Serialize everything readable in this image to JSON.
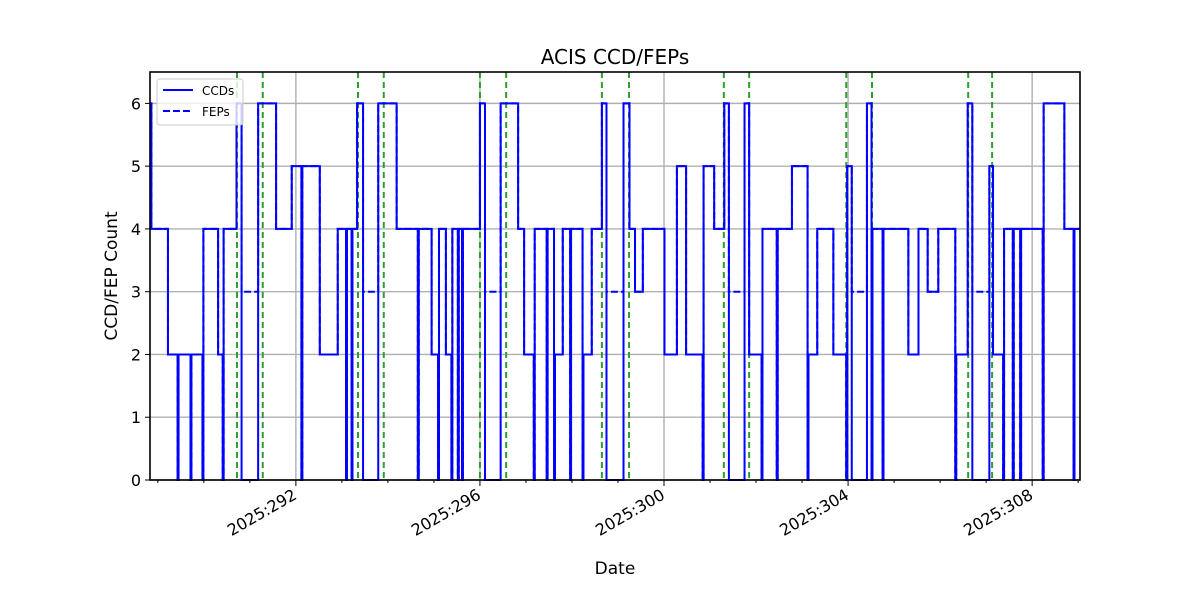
{
  "chart_data": {
    "type": "line",
    "title": "ACIS CCD/FEPs",
    "xlabel": "Date",
    "ylabel": "CCD/FEP Count",
    "xlim": [
      288.83,
      309.04
    ],
    "ylim": [
      0,
      6.5
    ],
    "grid": true,
    "legend_placement": "top-left",
    "x_ticks": [
      {
        "value": 292,
        "label": "2025:292"
      },
      {
        "value": 296,
        "label": "2025:296"
      },
      {
        "value": 300,
        "label": "2025:300"
      },
      {
        "value": 304,
        "label": "2025:304"
      },
      {
        "value": 308,
        "label": "2025:308"
      }
    ],
    "x_minor_ticks": [
      289,
      290,
      291,
      293,
      294,
      295,
      297,
      298,
      299,
      301,
      302,
      303,
      305,
      306,
      307,
      309
    ],
    "y_ticks": [
      0,
      1,
      2,
      3,
      4,
      5,
      6
    ],
    "colors": {
      "ccd": "#0000ff",
      "fep": "#0000ff",
      "event": "#2ca02c",
      "grid": "#b0b0b0"
    },
    "series": [
      {
        "name": "CCDs",
        "style": "solid",
        "steps": [
          [
            288.83,
            6
          ],
          [
            288.86,
            4
          ],
          [
            289.22,
            2
          ],
          [
            289.43,
            0
          ],
          [
            289.45,
            2
          ],
          [
            289.71,
            0
          ],
          [
            289.73,
            2
          ],
          [
            289.97,
            0
          ],
          [
            289.99,
            4
          ],
          [
            290.31,
            2
          ],
          [
            290.41,
            0
          ],
          [
            290.43,
            4
          ],
          [
            290.71,
            6
          ],
          [
            290.82,
            0
          ],
          [
            291.18,
            6
          ],
          [
            291.57,
            4
          ],
          [
            291.91,
            5
          ],
          [
            292.12,
            0
          ],
          [
            292.14,
            5
          ],
          [
            292.52,
            2
          ],
          [
            292.91,
            4
          ],
          [
            293.09,
            0
          ],
          [
            293.11,
            4
          ],
          [
            293.21,
            0
          ],
          [
            293.23,
            4
          ],
          [
            293.33,
            6
          ],
          [
            293.46,
            0
          ],
          [
            293.79,
            6
          ],
          [
            294.19,
            4
          ],
          [
            294.65,
            0
          ],
          [
            294.67,
            4
          ],
          [
            294.95,
            2
          ],
          [
            295.09,
            0
          ],
          [
            295.11,
            4
          ],
          [
            295.26,
            2
          ],
          [
            295.38,
            0
          ],
          [
            295.4,
            4
          ],
          [
            295.52,
            0
          ],
          [
            295.54,
            4
          ],
          [
            295.61,
            0
          ],
          [
            295.63,
            4
          ],
          [
            296.0,
            6
          ],
          [
            296.11,
            0
          ],
          [
            296.45,
            6
          ],
          [
            296.83,
            4
          ],
          [
            296.96,
            2
          ],
          [
            297.17,
            0
          ],
          [
            297.19,
            4
          ],
          [
            297.45,
            0
          ],
          [
            297.47,
            4
          ],
          [
            297.61,
            0
          ],
          [
            297.63,
            2
          ],
          [
            297.8,
            4
          ],
          [
            297.96,
            0
          ],
          [
            297.98,
            4
          ],
          [
            298.23,
            0
          ],
          [
            298.25,
            2
          ],
          [
            298.43,
            4
          ],
          [
            298.65,
            6
          ],
          [
            298.75,
            0
          ],
          [
            299.12,
            6
          ],
          [
            299.25,
            4
          ],
          [
            299.37,
            3
          ],
          [
            299.54,
            4
          ],
          [
            300.01,
            2
          ],
          [
            300.28,
            5
          ],
          [
            300.48,
            2
          ],
          [
            300.84,
            0
          ],
          [
            300.86,
            5
          ],
          [
            301.09,
            4
          ],
          [
            301.31,
            6
          ],
          [
            301.41,
            0
          ],
          [
            301.75,
            6
          ],
          [
            301.85,
            2
          ],
          [
            302.12,
            0
          ],
          [
            302.14,
            4
          ],
          [
            302.45,
            0
          ],
          [
            302.47,
            4
          ],
          [
            302.78,
            5
          ],
          [
            303.12,
            0
          ],
          [
            303.14,
            2
          ],
          [
            303.33,
            4
          ],
          [
            303.68,
            2
          ],
          [
            303.96,
            0
          ],
          [
            303.98,
            5
          ],
          [
            304.08,
            0
          ],
          [
            304.41,
            6
          ],
          [
            304.51,
            0
          ],
          [
            304.53,
            4
          ],
          [
            304.75,
            0
          ],
          [
            304.77,
            4
          ],
          [
            305.31,
            2
          ],
          [
            305.53,
            4
          ],
          [
            305.73,
            3
          ],
          [
            305.96,
            4
          ],
          [
            306.33,
            0
          ],
          [
            306.35,
            2
          ],
          [
            306.6,
            6
          ],
          [
            306.7,
            0
          ],
          [
            307.07,
            5
          ],
          [
            307.15,
            2
          ],
          [
            307.37,
            0
          ],
          [
            307.39,
            4
          ],
          [
            307.58,
            0
          ],
          [
            307.6,
            4
          ],
          [
            307.74,
            0
          ],
          [
            307.76,
            4
          ],
          [
            308.23,
            0
          ],
          [
            308.25,
            6
          ],
          [
            308.7,
            4
          ],
          [
            308.9,
            0
          ],
          [
            308.92,
            4
          ],
          [
            309.04,
            4
          ]
        ]
      },
      {
        "name": "FEPs",
        "style": "dashed",
        "steps": [
          [
            288.83,
            6
          ],
          [
            288.86,
            4
          ],
          [
            289.22,
            2
          ],
          [
            289.43,
            0
          ],
          [
            289.45,
            2
          ],
          [
            289.71,
            0
          ],
          [
            289.73,
            2
          ],
          [
            289.97,
            0
          ],
          [
            289.99,
            4
          ],
          [
            290.31,
            2
          ],
          [
            290.41,
            0
          ],
          [
            290.43,
            4
          ],
          [
            290.71,
            6
          ],
          [
            290.82,
            3
          ],
          [
            291.18,
            6
          ],
          [
            291.57,
            4
          ],
          [
            291.91,
            5
          ],
          [
            292.12,
            0
          ],
          [
            292.14,
            5
          ],
          [
            292.52,
            2
          ],
          [
            292.91,
            4
          ],
          [
            293.09,
            0
          ],
          [
            293.11,
            4
          ],
          [
            293.21,
            0
          ],
          [
            293.23,
            4
          ],
          [
            293.33,
            6
          ],
          [
            293.46,
            3
          ],
          [
            293.79,
            6
          ],
          [
            294.19,
            4
          ],
          [
            294.65,
            0
          ],
          [
            294.67,
            4
          ],
          [
            294.95,
            2
          ],
          [
            295.09,
            0
          ],
          [
            295.11,
            4
          ],
          [
            295.26,
            2
          ],
          [
            295.38,
            0
          ],
          [
            295.4,
            4
          ],
          [
            295.52,
            0
          ],
          [
            295.54,
            4
          ],
          [
            295.61,
            0
          ],
          [
            295.63,
            4
          ],
          [
            296.0,
            6
          ],
          [
            296.11,
            3
          ],
          [
            296.45,
            6
          ],
          [
            296.83,
            4
          ],
          [
            296.96,
            2
          ],
          [
            297.17,
            0
          ],
          [
            297.19,
            4
          ],
          [
            297.45,
            0
          ],
          [
            297.47,
            4
          ],
          [
            297.61,
            0
          ],
          [
            297.63,
            2
          ],
          [
            297.8,
            4
          ],
          [
            297.96,
            0
          ],
          [
            297.98,
            4
          ],
          [
            298.23,
            0
          ],
          [
            298.25,
            2
          ],
          [
            298.43,
            4
          ],
          [
            298.65,
            6
          ],
          [
            298.75,
            3
          ],
          [
            299.12,
            6
          ],
          [
            299.25,
            4
          ],
          [
            299.37,
            3
          ],
          [
            299.54,
            4
          ],
          [
            300.01,
            2
          ],
          [
            300.28,
            5
          ],
          [
            300.48,
            2
          ],
          [
            300.84,
            0
          ],
          [
            300.86,
            5
          ],
          [
            301.09,
            4
          ],
          [
            301.31,
            6
          ],
          [
            301.41,
            3
          ],
          [
            301.75,
            6
          ],
          [
            301.85,
            2
          ],
          [
            302.12,
            0
          ],
          [
            302.14,
            4
          ],
          [
            302.45,
            0
          ],
          [
            302.47,
            4
          ],
          [
            302.78,
            5
          ],
          [
            303.12,
            0
          ],
          [
            303.14,
            2
          ],
          [
            303.33,
            4
          ],
          [
            303.68,
            2
          ],
          [
            303.96,
            0
          ],
          [
            303.98,
            5
          ],
          [
            304.08,
            3
          ],
          [
            304.41,
            6
          ],
          [
            304.51,
            0
          ],
          [
            304.53,
            4
          ],
          [
            304.75,
            0
          ],
          [
            304.77,
            4
          ],
          [
            305.31,
            2
          ],
          [
            305.53,
            4
          ],
          [
            305.73,
            3
          ],
          [
            305.96,
            4
          ],
          [
            306.33,
            0
          ],
          [
            306.35,
            2
          ],
          [
            306.6,
            6
          ],
          [
            306.7,
            3
          ],
          [
            307.07,
            5
          ],
          [
            307.15,
            2
          ],
          [
            307.37,
            0
          ],
          [
            307.39,
            4
          ],
          [
            307.58,
            0
          ],
          [
            307.6,
            4
          ],
          [
            307.74,
            0
          ],
          [
            307.76,
            4
          ],
          [
            308.23,
            0
          ],
          [
            308.25,
            6
          ],
          [
            308.7,
            4
          ],
          [
            308.9,
            0
          ],
          [
            308.92,
            4
          ],
          [
            309.04,
            4
          ]
        ]
      }
    ],
    "event_lines": [
      290.72,
      291.28,
      293.35,
      293.91,
      296.0,
      296.57,
      298.65,
      299.24,
      301.3,
      301.85,
      303.96,
      304.52,
      306.61,
      307.13
    ]
  }
}
